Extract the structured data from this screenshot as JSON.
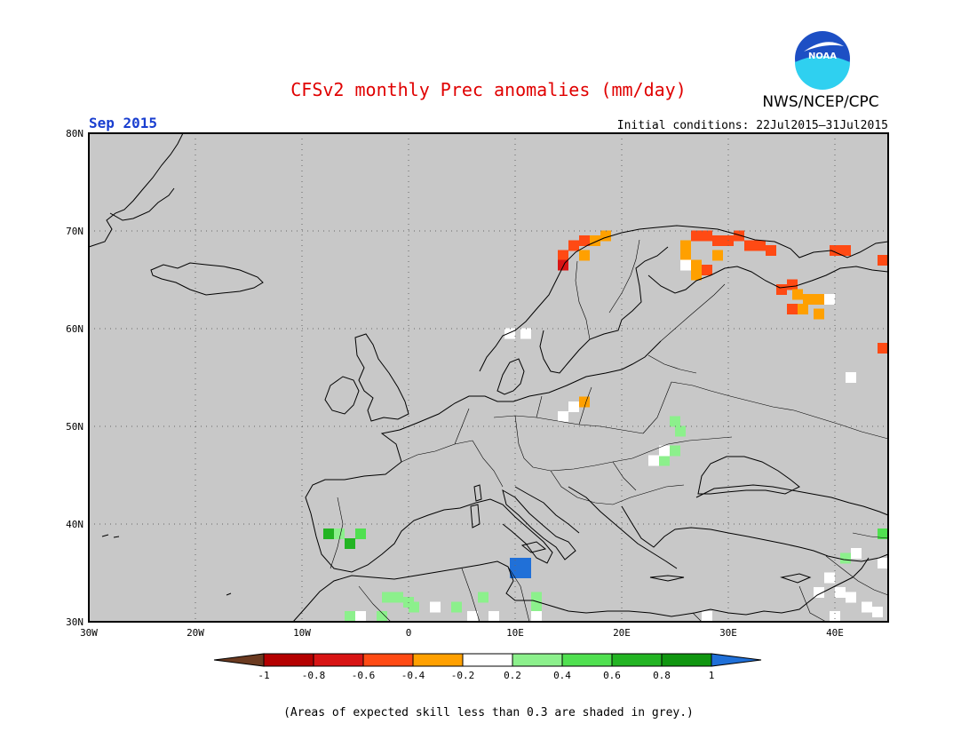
{
  "header": {
    "title": "CFSv2 monthly Prec anomalies (mm/day)",
    "agency": "NWS/NCEP/CPC",
    "logo_text": "NOAA",
    "period": "Sep 2015",
    "initial_conditions": "Initial conditions: 22Jul2015–31Jul2015"
  },
  "map": {
    "region": {
      "lon_min": -30,
      "lon_max": 45,
      "lat_min": 30,
      "lat_max": 80
    },
    "lat_labels": [
      "80N",
      "70N",
      "60N",
      "50N",
      "40N",
      "30N"
    ],
    "lon_labels": [
      "30W",
      "20W",
      "10W",
      "0",
      "10E",
      "20E",
      "30E",
      "40E"
    ],
    "background_color": "#c8c8c8"
  },
  "anomaly_cells": [
    {
      "lon": 14.5,
      "lat": 67.5,
      "class": "-0.6_-0.4"
    },
    {
      "lon": 15.5,
      "lat": 68.5,
      "class": "-0.6_-0.4"
    },
    {
      "lon": 16.5,
      "lat": 69.0,
      "class": "-0.6_-0.4"
    },
    {
      "lon": 17.5,
      "lat": 69.0,
      "class": "-0.4_-0.2"
    },
    {
      "lon": 18.5,
      "lat": 69.5,
      "class": "-0.4_-0.2"
    },
    {
      "lon": 14.5,
      "lat": 66.5,
      "class": "-0.8_-0.6"
    },
    {
      "lon": 16.5,
      "lat": 67.5,
      "class": "-0.4_-0.2"
    },
    {
      "lon": 27.0,
      "lat": 69.5,
      "class": "-0.6_-0.4"
    },
    {
      "lon": 28.0,
      "lat": 69.5,
      "class": "-0.6_-0.4"
    },
    {
      "lon": 29.0,
      "lat": 69.0,
      "class": "-0.6_-0.4"
    },
    {
      "lon": 30.0,
      "lat": 69.0,
      "class": "-0.6_-0.4"
    },
    {
      "lon": 31.0,
      "lat": 69.5,
      "class": "-0.6_-0.4"
    },
    {
      "lon": 32.0,
      "lat": 68.5,
      "class": "-0.6_-0.4"
    },
    {
      "lon": 33.0,
      "lat": 68.5,
      "class": "-0.6_-0.4"
    },
    {
      "lon": 34.0,
      "lat": 68.0,
      "class": "-0.6_-0.4"
    },
    {
      "lon": 26.0,
      "lat": 68.5,
      "class": "-0.4_-0.2"
    },
    {
      "lon": 26.0,
      "lat": 67.5,
      "class": "-0.4_-0.2"
    },
    {
      "lon": 27.0,
      "lat": 66.5,
      "class": "-0.4_-0.2"
    },
    {
      "lon": 28.0,
      "lat": 66.0,
      "class": "-0.6_-0.4"
    },
    {
      "lon": 27.0,
      "lat": 65.5,
      "class": "-0.4_-0.2"
    },
    {
      "lon": 26.0,
      "lat": 66.5,
      "class": "-0.2_0.2"
    },
    {
      "lon": 29.0,
      "lat": 67.5,
      "class": "-0.4_-0.2"
    },
    {
      "lon": 40.0,
      "lat": 68.0,
      "class": "-0.6_-0.4"
    },
    {
      "lon": 41.0,
      "lat": 68.0,
      "class": "-0.6_-0.4"
    },
    {
      "lon": 44.5,
      "lat": 67.0,
      "class": "-0.6_-0.4"
    },
    {
      "lon": 35.0,
      "lat": 64.0,
      "class": "-0.6_-0.4"
    },
    {
      "lon": 36.0,
      "lat": 64.5,
      "class": "-0.6_-0.4"
    },
    {
      "lon": 36.5,
      "lat": 63.5,
      "class": "-0.4_-0.2"
    },
    {
      "lon": 37.5,
      "lat": 63.0,
      "class": "-0.4_-0.2"
    },
    {
      "lon": 38.5,
      "lat": 63.0,
      "class": "-0.4_-0.2"
    },
    {
      "lon": 37.0,
      "lat": 62.0,
      "class": "-0.4_-0.2"
    },
    {
      "lon": 38.5,
      "lat": 61.5,
      "class": "-0.4_-0.2"
    },
    {
      "lon": 36.0,
      "lat": 62.0,
      "class": "-0.6_-0.4"
    },
    {
      "lon": 39.5,
      "lat": 63.0,
      "class": "-0.2_0.2"
    },
    {
      "lon": 45.0,
      "lat": 58.0,
      "class": "-0.6_-0.4"
    },
    {
      "lon": 41.5,
      "lat": 55.0,
      "class": "-0.2_0.2"
    },
    {
      "lon": 9.5,
      "lat": 59.5,
      "class": "-0.2_0.2"
    },
    {
      "lon": 11.0,
      "lat": 59.5,
      "class": "-0.2_0.2"
    },
    {
      "lon": 14.5,
      "lat": 51.0,
      "class": "-0.2_0.2"
    },
    {
      "lon": 15.5,
      "lat": 52.0,
      "class": "-0.2_0.2"
    },
    {
      "lon": 16.5,
      "lat": 52.5,
      "class": "-0.4_-0.2"
    },
    {
      "lon": 25.0,
      "lat": 50.5,
      "class": "0.2_0.4"
    },
    {
      "lon": 25.5,
      "lat": 49.5,
      "class": "0.2_0.4"
    },
    {
      "lon": 25.0,
      "lat": 47.5,
      "class": "0.2_0.4"
    },
    {
      "lon": 24.0,
      "lat": 46.5,
      "class": "0.2_0.4"
    },
    {
      "lon": 23.0,
      "lat": 46.5,
      "class": "-0.2_0.2"
    },
    {
      "lon": 24.0,
      "lat": 47.5,
      "class": "-0.2_0.2"
    },
    {
      "lon": -7.5,
      "lat": 39.0,
      "class": "0.6_0.8"
    },
    {
      "lon": -6.5,
      "lat": 39.0,
      "class": "0.2_0.4"
    },
    {
      "lon": -5.5,
      "lat": 38.0,
      "class": "0.6_0.8"
    },
    {
      "lon": -4.5,
      "lat": 39.0,
      "class": "0.4_0.6"
    },
    {
      "lon": 10.0,
      "lat": 36.0,
      "class": "gt_1"
    },
    {
      "lon": 11.0,
      "lat": 36.0,
      "class": "gt_1"
    },
    {
      "lon": 10.0,
      "lat": 35.0,
      "class": "gt_1"
    },
    {
      "lon": 11.0,
      "lat": 35.0,
      "class": "gt_1"
    },
    {
      "lon": -2.0,
      "lat": 32.5,
      "class": "0.2_0.4"
    },
    {
      "lon": -1.0,
      "lat": 32.5,
      "class": "0.2_0.4"
    },
    {
      "lon": 0.0,
      "lat": 32.0,
      "class": "0.2_0.4"
    },
    {
      "lon": 0.5,
      "lat": 31.5,
      "class": "0.2_0.4"
    },
    {
      "lon": 2.5,
      "lat": 31.5,
      "class": "-0.2_0.2"
    },
    {
      "lon": 4.5,
      "lat": 31.5,
      "class": "0.2_0.4"
    },
    {
      "lon": 7.0,
      "lat": 32.5,
      "class": "0.2_0.4"
    },
    {
      "lon": -5.5,
      "lat": 30.5,
      "class": "0.2_0.4"
    },
    {
      "lon": -4.5,
      "lat": 30.5,
      "class": "-0.2_0.2"
    },
    {
      "lon": -2.5,
      "lat": 30.5,
      "class": "0.2_0.4"
    },
    {
      "lon": 6.0,
      "lat": 30.5,
      "class": "-0.2_0.2"
    },
    {
      "lon": 8.0,
      "lat": 30.5,
      "class": "-0.2_0.2"
    },
    {
      "lon": 12.0,
      "lat": 31.5,
      "class": "0.2_0.4"
    },
    {
      "lon": 12.0,
      "lat": 30.5,
      "class": "-0.2_0.2"
    },
    {
      "lon": 12.0,
      "lat": 32.5,
      "class": "0.2_0.4"
    },
    {
      "lon": 38.5,
      "lat": 33.0,
      "class": "-0.2_0.2"
    },
    {
      "lon": 39.5,
      "lat": 34.5,
      "class": "-0.2_0.2"
    },
    {
      "lon": 40.5,
      "lat": 33.0,
      "class": "-0.2_0.2"
    },
    {
      "lon": 41.5,
      "lat": 32.5,
      "class": "-0.2_0.2"
    },
    {
      "lon": 43.0,
      "lat": 31.5,
      "class": "-0.2_0.2"
    },
    {
      "lon": 44.0,
      "lat": 31.0,
      "class": "-0.2_0.2"
    },
    {
      "lon": 41.0,
      "lat": 36.5,
      "class": "0.2_0.4"
    },
    {
      "lon": 42.0,
      "lat": 37.0,
      "class": "-0.2_0.2"
    },
    {
      "lon": 44.5,
      "lat": 36.0,
      "class": "-0.2_0.2"
    },
    {
      "lon": 44.5,
      "lat": 39.0,
      "class": "0.4_0.6"
    },
    {
      "lon": 28.0,
      "lat": 30.5,
      "class": "-0.2_0.2"
    },
    {
      "lon": 40.0,
      "lat": 30.5,
      "class": "-0.2_0.2"
    }
  ],
  "colorbar": {
    "labels": [
      "-1",
      "-0.8",
      "-0.6",
      "-0.4",
      "-0.2",
      "0.2",
      "0.4",
      "0.6",
      "0.8",
      "1"
    ],
    "classes": [
      {
        "key": "lt_-1",
        "color": "#6b3a20"
      },
      {
        "key": "-1_-0.8",
        "color": "#b40000"
      },
      {
        "key": "-0.8_-0.6",
        "color": "#d81414"
      },
      {
        "key": "-0.6_-0.4",
        "color": "#ff4a14"
      },
      {
        "key": "-0.4_-0.2",
        "color": "#ffa000"
      },
      {
        "key": "-0.2_0.2",
        "color": "#ffffff"
      },
      {
        "key": "0.2_0.4",
        "color": "#8cf08c"
      },
      {
        "key": "0.4_0.6",
        "color": "#50e050"
      },
      {
        "key": "0.6_0.8",
        "color": "#23b423"
      },
      {
        "key": "0.8_1",
        "color": "#109610"
      },
      {
        "key": "gt_1",
        "color": "#2070d8"
      }
    ]
  },
  "footnote": "(Areas of expected skill less than 0.3 are shaded in grey.)"
}
